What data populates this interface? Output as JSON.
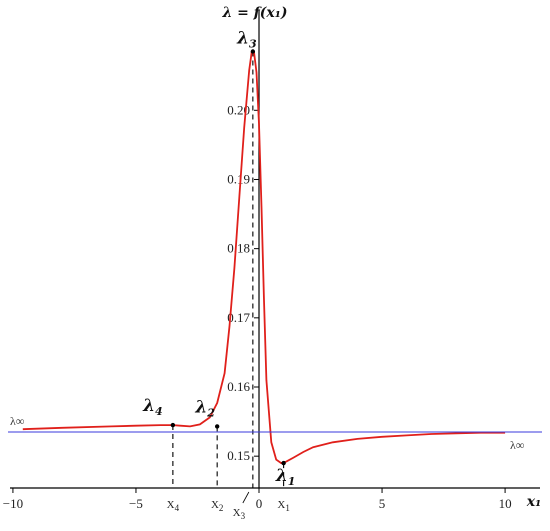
{
  "chart_data": {
    "type": "line",
    "title": "",
    "ylabel": "λ = f(x₁)",
    "xlabel": "x₁",
    "xlim": [
      -10.2,
      11.5
    ],
    "ylim": [
      0.1454,
      0.2145
    ],
    "x_ticks": [
      -10,
      -5,
      0,
      5,
      10
    ],
    "x_tick_labels": [
      "−10",
      "−5",
      "0",
      "5",
      "10"
    ],
    "y_ticks": [
      0.15,
      0.16,
      0.17,
      0.18,
      0.19,
      0.2
    ],
    "y_tick_labels": [
      "0.15",
      "0.16",
      "0.17",
      "0.18",
      "0.19",
      "0.20"
    ],
    "grid": false,
    "series": [
      {
        "color": "#e0201b",
        "x": [
          -9.6,
          -8,
          -6,
          -5,
          -4,
          -3.5,
          -3.2,
          -2.8,
          -2.4,
          -2.0,
          -1.7,
          -1.4,
          -1.2,
          -1.0,
          -0.8,
          -0.6,
          -0.4,
          -0.3,
          -0.2,
          -0.1,
          0.0,
          0.1,
          0.2,
          0.3,
          0.5,
          0.7,
          0.9,
          1.1,
          1.4,
          1.8,
          2.2,
          3.0,
          4.0,
          5.0,
          6.0,
          7.0,
          8.0,
          9.0,
          10.0
        ],
        "y": [
          0.1539,
          0.1541,
          0.1543,
          0.1544,
          0.1545,
          0.1545,
          0.1544,
          0.1543,
          0.1546,
          0.1556,
          0.1577,
          0.162,
          0.1688,
          0.1772,
          0.1874,
          0.1975,
          0.2058,
          0.2083,
          0.2083,
          0.2055,
          0.198,
          0.186,
          0.173,
          0.161,
          0.152,
          0.1495,
          0.149,
          0.1492,
          0.1498,
          0.1506,
          0.1513,
          0.152,
          0.1525,
          0.1528,
          0.153,
          0.1532,
          0.1533,
          0.1534,
          0.1534
        ]
      },
      {
        "color": "#3a3adc",
        "x": [
          -10.2,
          11.5
        ],
        "y": [
          0.1535,
          0.1535
        ]
      }
    ],
    "asymptote_label": "λ∞",
    "annotations": [
      {
        "label": "λ",
        "sub": "1",
        "x": 1.0,
        "y": 0.149,
        "xlabel": "X",
        "xsub": "1"
      },
      {
        "label": "λ",
        "sub": "2",
        "x": -1.7,
        "y": 0.1543,
        "xlabel": "X",
        "xsub": "2"
      },
      {
        "label": "λ",
        "sub": "3",
        "x": -0.25,
        "y": 0.2085,
        "xlabel": "X",
        "xsub": "3"
      },
      {
        "label": "λ",
        "sub": "4",
        "x": -3.5,
        "y": 0.1545,
        "xlabel": "X",
        "xsub": "4"
      }
    ]
  }
}
